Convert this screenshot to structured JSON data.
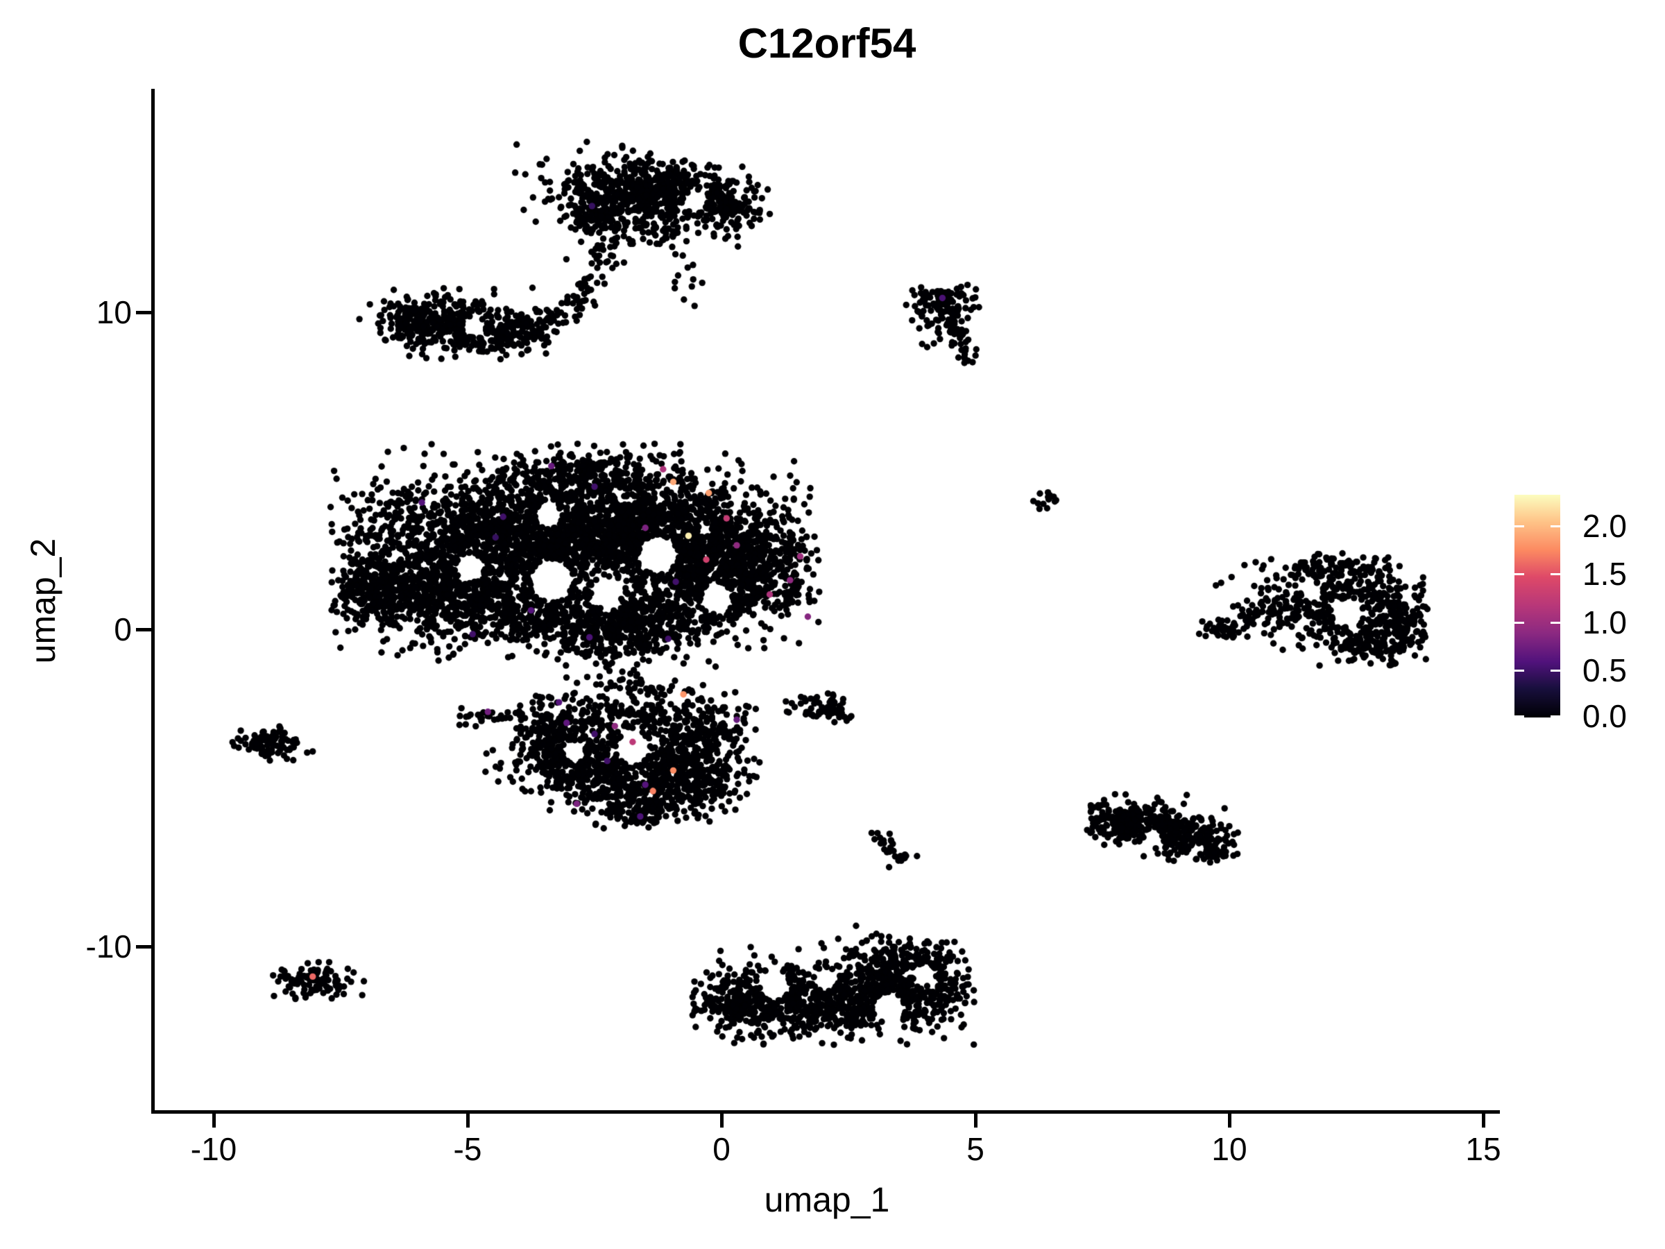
{
  "chart_data": {
    "type": "scatter",
    "title": "C12orf54",
    "xlabel": "umap_1",
    "ylabel": "umap_2",
    "x_ticks": [
      -10,
      -5,
      0,
      5,
      10,
      15
    ],
    "x_tick_labels": [
      "-10",
      "-5",
      "0",
      "5",
      "10",
      "15"
    ],
    "y_ticks": [
      10,
      0,
      -10
    ],
    "y_tick_labels": [
      "10",
      "0",
      "-10"
    ],
    "xlim": [
      -11.2,
      15.3
    ],
    "ylim": [
      -15.2,
      17.0
    ],
    "grid": false,
    "legend_position": "right",
    "point_color_default": "#000004",
    "background_color": "#ffffff",
    "axis_color": "#000000",
    "colorbar": {
      "tick_labels": [
        "2.0",
        "1.5",
        "1.0",
        "0.5",
        "0.0"
      ],
      "tick_values": [
        2.0,
        1.5,
        1.0,
        0.5,
        0.0
      ],
      "vmin": 0.0,
      "vmax": 2.32,
      "colormap": "magma",
      "stops": [
        [
          0.0,
          "#000004"
        ],
        [
          0.13,
          "#180f3d"
        ],
        [
          0.25,
          "#51127c"
        ],
        [
          0.38,
          "#8c2981"
        ],
        [
          0.5,
          "#b73779"
        ],
        [
          0.63,
          "#de4968"
        ],
        [
          0.75,
          "#fc8961"
        ],
        [
          0.88,
          "#fec488"
        ],
        [
          1.0,
          "#fcfdbf"
        ]
      ]
    },
    "clusters": [
      {
        "name": "cluster-top",
        "parts": [
          {
            "cx": -1.9,
            "cy": 13.8,
            "sx": 0.75,
            "sy": 0.55,
            "n": 420
          },
          {
            "cx": -0.05,
            "cy": 13.35,
            "sx": 0.45,
            "sy": 0.5,
            "n": 220
          },
          {
            "cx": -1.0,
            "cy": 13.95,
            "sx": 0.45,
            "sy": 0.35,
            "n": 100
          },
          {
            "cx": -2.45,
            "cy": 12.95,
            "sx": 0.35,
            "sy": 0.3,
            "n": 70
          },
          {
            "cx": -1.35,
            "cy": 12.5,
            "sx": 0.5,
            "sy": 0.3,
            "n": 40
          },
          {
            "cx": -0.8,
            "cy": 11.4,
            "sx": 0.3,
            "sy": 0.45,
            "n": 12
          }
        ],
        "lines": [
          {
            "x1": -2.15,
            "y1": 12.2,
            "x2": -2.7,
            "y2": 10.6,
            "n": 38,
            "j": 0.22
          }
        ],
        "points": [
          [
            0.95,
            13.1
          ],
          [
            -0.74,
            10.4
          ],
          [
            -0.53,
            10.2
          ]
        ],
        "holes": [
          [
            -0.5,
            13.5,
            0.22
          ]
        ],
        "clip": [
          -4.2,
          1.1,
          9.9,
          15.4
        ]
      },
      {
        "name": "cluster-upper-left",
        "parts": [
          {
            "cx": -5.45,
            "cy": 9.6,
            "sx": 0.65,
            "sy": 0.42,
            "n": 330
          },
          {
            "cx": -4.2,
            "cy": 9.35,
            "sx": 0.5,
            "sy": 0.33,
            "n": 150
          },
          {
            "cx": -6.1,
            "cy": 9.9,
            "sx": 0.25,
            "sy": 0.25,
            "n": 60
          }
        ],
        "lines": [
          {
            "x1": -3.5,
            "y1": 9.7,
            "x2": -2.55,
            "y2": 10.45,
            "n": 42,
            "j": 0.2
          }
        ],
        "points": [],
        "holes": [
          [
            -4.9,
            9.55,
            0.2
          ]
        ],
        "clip": [
          -7.2,
          -2.2,
          8.5,
          11.0
        ]
      },
      {
        "name": "cluster-upper-right-comma",
        "parts": [
          {
            "cx": 4.35,
            "cy": 10.35,
            "sx": 0.3,
            "sy": 0.24,
            "n": 85
          },
          {
            "cx": 4.15,
            "cy": 9.7,
            "sx": 0.2,
            "sy": 0.3,
            "n": 22
          }
        ],
        "lines": [
          {
            "x1": 4.5,
            "y1": 10.0,
            "x2": 4.85,
            "y2": 8.55,
            "n": 55,
            "j": 0.12
          }
        ],
        "points": [
          [
            4.05,
            8.9
          ],
          [
            3.95,
            9.0
          ]
        ],
        "holes": [],
        "clip": [
          3.6,
          5.4,
          8.2,
          11.0
        ]
      },
      {
        "name": "cluster-central-main",
        "parts": [
          {
            "cx": -4.7,
            "cy": 2.7,
            "sx": 1.45,
            "sy": 1.05,
            "n": 1400
          },
          {
            "cx": -2.3,
            "cy": 3.3,
            "sx": 1.25,
            "sy": 0.95,
            "n": 1250
          },
          {
            "cx": -0.2,
            "cy": 2.7,
            "sx": 1.0,
            "sy": 0.95,
            "n": 780
          },
          {
            "cx": 0.45,
            "cy": 1.6,
            "sx": 0.75,
            "sy": 0.8,
            "n": 450
          },
          {
            "cx": -5.6,
            "cy": 1.0,
            "sx": 0.95,
            "sy": 0.65,
            "n": 550
          },
          {
            "cx": -3.2,
            "cy": 0.4,
            "sx": 1.25,
            "sy": 0.55,
            "n": 470
          },
          {
            "cx": -1.9,
            "cy": -0.1,
            "sx": 0.65,
            "sy": 0.45,
            "n": 240
          },
          {
            "cx": -6.9,
            "cy": 1.3,
            "sx": 0.45,
            "sy": 0.5,
            "n": 170
          },
          {
            "cx": -3.0,
            "cy": 4.9,
            "sx": 0.9,
            "sy": 0.4,
            "n": 200
          },
          {
            "cx": -1.0,
            "cy": 0.6,
            "sx": 0.6,
            "sy": 0.5,
            "n": 150
          }
        ],
        "lines": [],
        "points": [],
        "holes": [
          [
            -3.35,
            1.55,
            0.42
          ],
          [
            -1.25,
            2.35,
            0.38
          ],
          [
            -2.25,
            1.15,
            0.3
          ],
          [
            -4.95,
            1.95,
            0.28
          ],
          [
            -0.1,
            1.0,
            0.3
          ],
          [
            -3.4,
            3.6,
            0.25
          ]
        ],
        "clip": [
          -7.7,
          1.95,
          -1.35,
          5.85
        ]
      },
      {
        "name": "cluster-central-lower",
        "parts": [
          {
            "cx": -0.95,
            "cy": -4.6,
            "sx": 0.7,
            "sy": 0.6,
            "n": 480
          },
          {
            "cx": -2.6,
            "cy": -4.35,
            "sx": 0.65,
            "sy": 0.55,
            "n": 360
          },
          {
            "cx": -3.3,
            "cy": -3.4,
            "sx": 0.4,
            "sy": 0.5,
            "n": 180
          },
          {
            "cx": -1.8,
            "cy": -2.7,
            "sx": 0.95,
            "sy": 0.45,
            "n": 200
          },
          {
            "cx": -0.35,
            "cy": -3.4,
            "sx": 0.45,
            "sy": 0.6,
            "n": 190
          },
          {
            "cx": -1.8,
            "cy": -5.6,
            "sx": 0.5,
            "sy": 0.3,
            "n": 110
          },
          {
            "cx": -4.6,
            "cy": -2.75,
            "sx": 0.42,
            "sy": 0.16,
            "n": 28
          }
        ],
        "lines": [
          {
            "x1": -1.95,
            "y1": -1.2,
            "x2": -1.6,
            "y2": -2.3,
            "n": 30,
            "j": 0.4
          }
        ],
        "points": [],
        "holes": [
          [
            -1.75,
            -3.75,
            0.33
          ],
          [
            -2.9,
            -3.85,
            0.22
          ]
        ],
        "clip": [
          -5.6,
          0.9,
          -6.3,
          -0.85
        ]
      },
      {
        "name": "cluster-small-mid",
        "parts": [
          {
            "cx": 2.05,
            "cy": -2.55,
            "sx": 0.3,
            "sy": 0.26,
            "n": 58
          },
          {
            "cx": 1.5,
            "cy": -2.3,
            "sx": 0.15,
            "sy": 0.12,
            "n": 9
          }
        ],
        "lines": [],
        "points": [],
        "holes": [],
        "clip": [
          1.1,
          2.9,
          -3.4,
          -1.8
        ]
      },
      {
        "name": "cluster-tiny-right",
        "parts": [
          {
            "cx": 6.45,
            "cy": 4.05,
            "sx": 0.13,
            "sy": 0.13,
            "n": 13
          }
        ],
        "lines": [],
        "points": [],
        "holes": [],
        "clip": [
          6.0,
          6.9,
          3.6,
          4.5
        ]
      },
      {
        "name": "cluster-far-left",
        "parts": [
          {
            "cx": -8.95,
            "cy": -3.6,
            "sx": 0.33,
            "sy": 0.26,
            "n": 95
          }
        ],
        "lines": [],
        "points": [
          [
            -8.05,
            -3.85
          ]
        ],
        "holes": [],
        "clip": [
          -9.9,
          -7.9,
          -4.5,
          -2.9
        ]
      },
      {
        "name": "cluster-lower-far-left",
        "parts": [
          {
            "cx": -7.95,
            "cy": -11.1,
            "sx": 0.36,
            "sy": 0.24,
            "n": 105
          }
        ],
        "lines": [],
        "points": [],
        "holes": [],
        "clip": [
          -8.9,
          -7.0,
          -11.8,
          -10.3
        ]
      },
      {
        "name": "cluster-streak-lower-mid",
        "parts": [],
        "lines": [
          {
            "x1": 3.05,
            "y1": -6.45,
            "x2": 3.6,
            "y2": -7.35,
            "n": 26,
            "j": 0.12
          }
        ],
        "points": [
          [
            3.85,
            -7.15
          ],
          [
            3.3,
            -7.5
          ]
        ],
        "holes": [],
        "clip": [
          2.7,
          4.2,
          -7.9,
          -6.1
        ]
      },
      {
        "name": "cluster-bottom",
        "parts": [
          {
            "cx": 0.85,
            "cy": -11.7,
            "sx": 0.8,
            "sy": 0.55,
            "n": 520
          },
          {
            "cx": 3.4,
            "cy": -11.45,
            "sx": 0.8,
            "sy": 0.6,
            "n": 600
          },
          {
            "cx": 3.6,
            "cy": -10.35,
            "sx": 0.5,
            "sy": 0.3,
            "n": 110
          },
          {
            "cx": 2.3,
            "cy": -11.9,
            "sx": 0.4,
            "sy": 0.45,
            "n": 120
          }
        ],
        "lines": [],
        "points": [
          [
            2.65,
            -9.35
          ],
          [
            3.05,
            -9.6
          ]
        ],
        "holes": [
          [
            1.05,
            -11.25,
            0.28
          ],
          [
            3.3,
            -11.95,
            0.3
          ],
          [
            2.05,
            -11.05,
            0.22
          ],
          [
            4.0,
            -10.9,
            0.22
          ]
        ],
        "clip": [
          -0.6,
          5.0,
          -13.1,
          -9.2
        ]
      },
      {
        "name": "cluster-right",
        "parts": [
          {
            "cx": 12.3,
            "cy": 0.7,
            "sx": 0.85,
            "sy": 0.7,
            "n": 430
          },
          {
            "cx": 12.0,
            "cy": 1.95,
            "sx": 0.55,
            "sy": 0.22,
            "n": 80
          },
          {
            "cx": 13.35,
            "cy": 0.15,
            "sx": 0.3,
            "sy": 0.5,
            "n": 110
          },
          {
            "cx": 12.7,
            "cy": -0.6,
            "sx": 0.4,
            "sy": 0.3,
            "n": 90
          },
          {
            "cx": 9.8,
            "cy": 0.0,
            "sx": 0.22,
            "sy": 0.16,
            "n": 30
          }
        ],
        "lines": [
          {
            "x1": 10.05,
            "y1": 0.1,
            "x2": 11.3,
            "y2": 1.0,
            "n": 55,
            "j": 0.22
          }
        ],
        "points": [],
        "holes": [
          [
            12.35,
            0.55,
            0.28
          ],
          [
            11.6,
            1.2,
            0.2
          ]
        ],
        "clip": [
          9.4,
          13.9,
          -1.2,
          2.4
        ]
      },
      {
        "name": "cluster-right-lower",
        "parts": [
          {
            "cx": 8.0,
            "cy": -6.1,
            "sx": 0.5,
            "sy": 0.33,
            "n": 250
          },
          {
            "cx": 9.3,
            "cy": -6.6,
            "sx": 0.42,
            "sy": 0.32,
            "n": 170
          },
          {
            "cx": 8.65,
            "cy": -6.25,
            "sx": 0.3,
            "sy": 0.2,
            "n": 60
          },
          {
            "cx": 9.85,
            "cy": -7.1,
            "sx": 0.15,
            "sy": 0.12,
            "n": 12
          }
        ],
        "lines": [],
        "points": [
          [
            7.75,
            -5.2
          ]
        ],
        "holes": [
          [
            8.5,
            -6.55,
            0.18
          ]
        ],
        "clip": [
          7.2,
          10.3,
          -7.6,
          -4.9
        ]
      }
    ],
    "expressing_cells": [
      [
        -3.35,
        5.15,
        0.7
      ],
      [
        -1.15,
        5.05,
        1.1
      ],
      [
        -0.95,
        4.65,
        1.9
      ],
      [
        -2.5,
        4.5,
        0.5
      ],
      [
        -0.25,
        4.3,
        1.85
      ],
      [
        -5.9,
        4.0,
        0.6
      ],
      [
        -4.3,
        3.55,
        0.5
      ],
      [
        0.1,
        3.5,
        1.25
      ],
      [
        -1.5,
        3.2,
        0.8
      ],
      [
        -0.65,
        2.95,
        2.25
      ],
      [
        -4.45,
        2.9,
        0.45
      ],
      [
        0.3,
        2.65,
        0.9
      ],
      [
        1.55,
        2.3,
        1.0
      ],
      [
        -0.3,
        2.2,
        1.35
      ],
      [
        1.35,
        1.55,
        0.9
      ],
      [
        -0.9,
        1.5,
        0.5
      ],
      [
        0.95,
        1.1,
        1.1
      ],
      [
        -3.75,
        0.6,
        0.6
      ],
      [
        -4.9,
        -0.15,
        0.5
      ],
      [
        -2.6,
        -0.25,
        0.55
      ],
      [
        -1.05,
        -0.3,
        0.5
      ],
      [
        1.7,
        0.4,
        0.85
      ],
      [
        -3.2,
        -2.3,
        0.6
      ],
      [
        -3.05,
        -2.95,
        0.65
      ],
      [
        -4.6,
        -2.6,
        0.75
      ],
      [
        -2.5,
        -3.3,
        0.5
      ],
      [
        -2.1,
        -3.05,
        0.9
      ],
      [
        -0.75,
        -2.05,
        1.8
      ],
      [
        0.3,
        -2.85,
        0.7
      ],
      [
        -0.95,
        -4.45,
        1.75
      ],
      [
        -1.75,
        -3.55,
        1.2
      ],
      [
        -2.25,
        -4.15,
        0.5
      ],
      [
        -1.5,
        -4.9,
        0.6
      ],
      [
        -1.35,
        -5.1,
        1.7
      ],
      [
        -2.85,
        -5.5,
        0.8
      ],
      [
        -1.6,
        -5.9,
        0.55
      ],
      [
        4.35,
        10.45,
        0.55
      ],
      [
        -8.05,
        -10.95,
        1.6
      ],
      [
        -2.55,
        13.35,
        0.45
      ]
    ]
  }
}
